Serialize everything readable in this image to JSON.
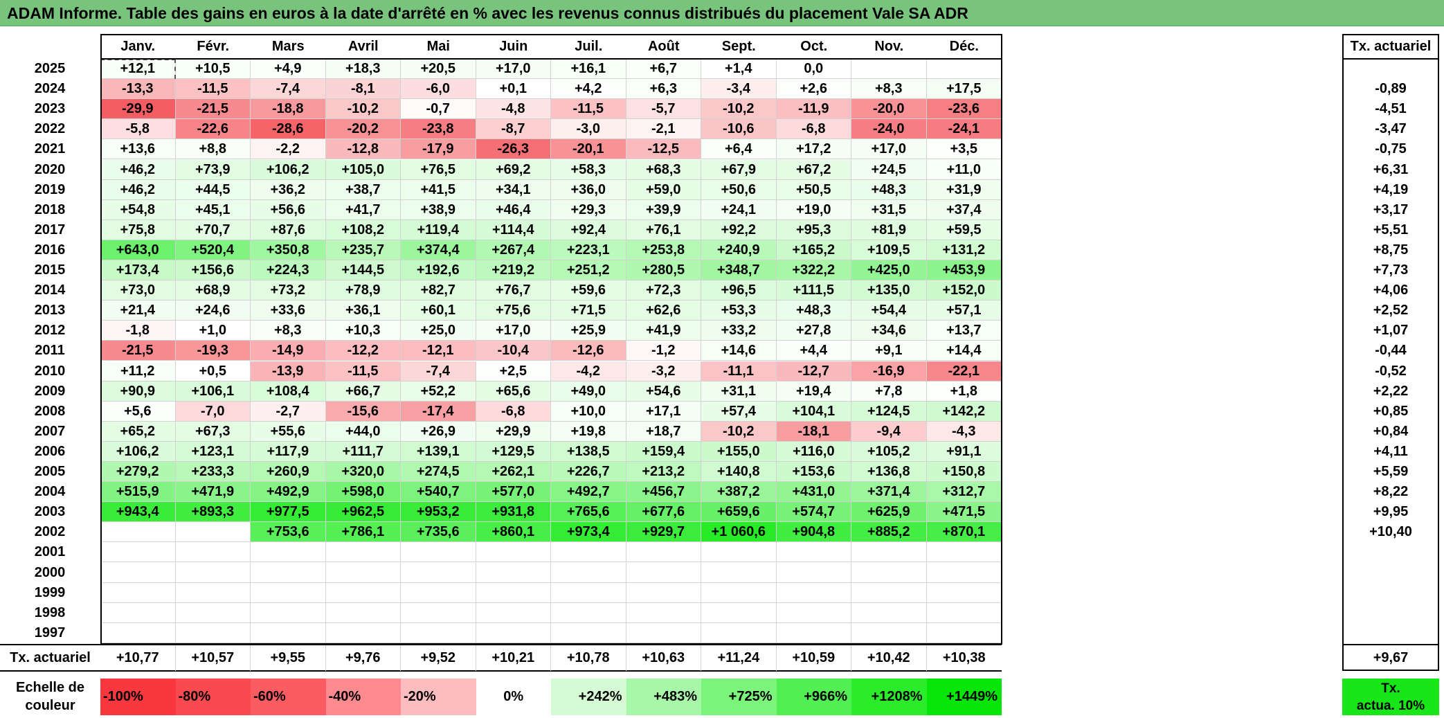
{
  "title": "ADAM Informe. Table des gains en euros à la date d'arrêté en % avec les revenus connus distribués du placement Vale SA ADR",
  "months": [
    "Janv.",
    "Févr.",
    "Mars",
    "Avril",
    "Mai",
    "Juin",
    "Juil.",
    "Août",
    "Sept.",
    "Oct.",
    "Nov.",
    "Déc."
  ],
  "annual_header": "Tx. actuariel",
  "rows": [
    {
      "year": "2025",
      "values": [
        "+12,1",
        "+10,5",
        "+4,9",
        "+18,3",
        "+20,5",
        "+17,0",
        "+16,1",
        "+6,7",
        "+1,4",
        "0,0",
        "",
        ""
      ],
      "annual": ""
    },
    {
      "year": "2024",
      "values": [
        "-13,3",
        "-11,5",
        "-7,4",
        "-8,1",
        "-6,0",
        "+0,1",
        "+4,2",
        "+6,3",
        "-3,4",
        "+2,6",
        "+8,3",
        "+17,5"
      ],
      "annual": "-0,89"
    },
    {
      "year": "2023",
      "values": [
        "-29,9",
        "-21,5",
        "-18,8",
        "-10,2",
        "-0,7",
        "-4,8",
        "-11,5",
        "-5,7",
        "-10,2",
        "-11,9",
        "-20,0",
        "-23,6"
      ],
      "annual": "-4,51"
    },
    {
      "year": "2022",
      "values": [
        "-5,8",
        "-22,6",
        "-28,6",
        "-20,2",
        "-23,8",
        "-8,7",
        "-3,0",
        "-2,1",
        "-10,6",
        "-6,8",
        "-24,0",
        "-24,1"
      ],
      "annual": "-3,47"
    },
    {
      "year": "2021",
      "values": [
        "+13,6",
        "+8,8",
        "-2,2",
        "-12,8",
        "-17,9",
        "-26,3",
        "-20,1",
        "-12,5",
        "+6,4",
        "+17,2",
        "+17,0",
        "+3,5"
      ],
      "annual": "-0,75"
    },
    {
      "year": "2020",
      "values": [
        "+46,2",
        "+73,9",
        "+106,2",
        "+105,0",
        "+76,5",
        "+69,2",
        "+58,3",
        "+68,3",
        "+67,9",
        "+67,2",
        "+24,5",
        "+11,0"
      ],
      "annual": "+6,31"
    },
    {
      "year": "2019",
      "values": [
        "+46,2",
        "+44,5",
        "+36,2",
        "+38,7",
        "+41,5",
        "+34,1",
        "+36,0",
        "+59,0",
        "+50,6",
        "+50,5",
        "+48,3",
        "+31,9"
      ],
      "annual": "+4,19"
    },
    {
      "year": "2018",
      "values": [
        "+54,8",
        "+45,1",
        "+56,6",
        "+41,7",
        "+38,9",
        "+46,4",
        "+29,3",
        "+39,9",
        "+24,1",
        "+19,0",
        "+31,5",
        "+37,4"
      ],
      "annual": "+3,17"
    },
    {
      "year": "2017",
      "values": [
        "+75,8",
        "+70,7",
        "+87,6",
        "+108,2",
        "+119,4",
        "+114,4",
        "+92,4",
        "+76,1",
        "+92,2",
        "+95,3",
        "+81,9",
        "+59,5"
      ],
      "annual": "+5,51"
    },
    {
      "year": "2016",
      "values": [
        "+643,0",
        "+520,4",
        "+350,8",
        "+235,7",
        "+374,4",
        "+267,4",
        "+223,1",
        "+253,8",
        "+240,9",
        "+165,2",
        "+109,5",
        "+131,2"
      ],
      "annual": "+8,75"
    },
    {
      "year": "2015",
      "values": [
        "+173,4",
        "+156,6",
        "+224,3",
        "+144,5",
        "+192,6",
        "+219,2",
        "+251,2",
        "+280,5",
        "+348,7",
        "+322,2",
        "+425,0",
        "+453,9"
      ],
      "annual": "+7,73"
    },
    {
      "year": "2014",
      "values": [
        "+73,0",
        "+68,9",
        "+73,2",
        "+78,9",
        "+82,7",
        "+76,7",
        "+59,6",
        "+72,3",
        "+96,5",
        "+111,5",
        "+135,0",
        "+152,0"
      ],
      "annual": "+4,06"
    },
    {
      "year": "2013",
      "values": [
        "+21,4",
        "+24,6",
        "+33,6",
        "+36,1",
        "+60,1",
        "+75,6",
        "+71,5",
        "+62,6",
        "+53,3",
        "+48,3",
        "+54,4",
        "+57,1"
      ],
      "annual": "+2,52"
    },
    {
      "year": "2012",
      "values": [
        "-1,8",
        "+1,0",
        "+8,3",
        "+10,3",
        "+25,0",
        "+17,0",
        "+25,9",
        "+41,9",
        "+33,2",
        "+27,8",
        "+34,6",
        "+13,7"
      ],
      "annual": "+1,07"
    },
    {
      "year": "2011",
      "values": [
        "-21,5",
        "-19,3",
        "-14,9",
        "-12,2",
        "-12,1",
        "-10,4",
        "-12,6",
        "-1,2",
        "+14,6",
        "+4,4",
        "+9,1",
        "+14,4"
      ],
      "annual": "-0,44"
    },
    {
      "year": "2010",
      "values": [
        "+11,2",
        "+0,5",
        "-13,9",
        "-11,5",
        "-7,4",
        "+2,5",
        "-4,2",
        "-3,2",
        "-11,1",
        "-12,7",
        "-16,9",
        "-22,1"
      ],
      "annual": "-0,52"
    },
    {
      "year": "2009",
      "values": [
        "+90,9",
        "+106,1",
        "+108,4",
        "+66,7",
        "+52,2",
        "+65,6",
        "+49,0",
        "+54,6",
        "+31,1",
        "+19,4",
        "+7,8",
        "+1,8"
      ],
      "annual": "+2,22"
    },
    {
      "year": "2008",
      "values": [
        "+5,6",
        "-7,0",
        "-2,7",
        "-15,6",
        "-17,4",
        "-6,8",
        "+10,0",
        "+17,1",
        "+57,4",
        "+104,1",
        "+124,5",
        "+142,2"
      ],
      "annual": "+0,85"
    },
    {
      "year": "2007",
      "values": [
        "+65,2",
        "+67,3",
        "+55,6",
        "+44,0",
        "+26,9",
        "+29,9",
        "+19,8",
        "+18,7",
        "-10,2",
        "-18,1",
        "-9,4",
        "-4,3"
      ],
      "annual": "+0,84"
    },
    {
      "year": "2006",
      "values": [
        "+106,2",
        "+123,1",
        "+117,9",
        "+111,7",
        "+139,1",
        "+129,5",
        "+138,5",
        "+159,4",
        "+155,0",
        "+116,0",
        "+105,2",
        "+91,1"
      ],
      "annual": "+4,11"
    },
    {
      "year": "2005",
      "values": [
        "+279,2",
        "+233,3",
        "+260,9",
        "+320,0",
        "+274,5",
        "+262,1",
        "+226,7",
        "+213,2",
        "+140,8",
        "+153,6",
        "+136,8",
        "+150,8"
      ],
      "annual": "+5,59"
    },
    {
      "year": "2004",
      "values": [
        "+515,9",
        "+471,9",
        "+492,9",
        "+598,0",
        "+540,7",
        "+577,0",
        "+492,7",
        "+456,7",
        "+387,2",
        "+431,0",
        "+371,4",
        "+312,7"
      ],
      "annual": "+8,22"
    },
    {
      "year": "2003",
      "values": [
        "+943,4",
        "+893,3",
        "+977,5",
        "+962,5",
        "+953,2",
        "+931,8",
        "+765,6",
        "+677,6",
        "+659,6",
        "+574,7",
        "+625,9",
        "+471,5"
      ],
      "annual": "+9,95"
    },
    {
      "year": "2002",
      "values": [
        "",
        "",
        "+753,6",
        "+786,1",
        "+735,6",
        "+860,1",
        "+973,4",
        "+929,7",
        "+1 060,6",
        "+904,8",
        "+885,2",
        "+870,1"
      ],
      "annual": "+10,40"
    },
    {
      "year": "2001",
      "values": [
        "",
        "",
        "",
        "",
        "",
        "",
        "",
        "",
        "",
        "",
        "",
        ""
      ],
      "annual": ""
    },
    {
      "year": "2000",
      "values": [
        "",
        "",
        "",
        "",
        "",
        "",
        "",
        "",
        "",
        "",
        "",
        ""
      ],
      "annual": ""
    },
    {
      "year": "1999",
      "values": [
        "",
        "",
        "",
        "",
        "",
        "",
        "",
        "",
        "",
        "",
        "",
        ""
      ],
      "annual": ""
    },
    {
      "year": "1998",
      "values": [
        "",
        "",
        "",
        "",
        "",
        "",
        "",
        "",
        "",
        "",
        "",
        ""
      ],
      "annual": ""
    },
    {
      "year": "1997",
      "values": [
        "",
        "",
        "",
        "",
        "",
        "",
        "",
        "",
        "",
        "",
        "",
        ""
      ],
      "annual": ""
    }
  ],
  "footer": {
    "label": "Tx. actuariel",
    "values": [
      "+10,77",
      "+10,57",
      "+9,55",
      "+9,76",
      "+9,52",
      "+10,21",
      "+10,78",
      "+10,63",
      "+11,24",
      "+10,59",
      "+10,42",
      "+10,38"
    ],
    "annual": "+9,67"
  },
  "scale": {
    "label_line1": "Echelle de",
    "label_line2": "couleur",
    "steps": [
      {
        "text": "-100%",
        "color": "#f8383e"
      },
      {
        "text": "-80%",
        "color": "#f94a50"
      },
      {
        "text": "-60%",
        "color": "#fa5c62"
      },
      {
        "text": "-40%",
        "color": "#fc8a8e"
      },
      {
        "text": "-20%",
        "color": "#fdbcbe"
      },
      {
        "text": "0%",
        "color": "#ffffff"
      },
      {
        "text": "+242%",
        "color": "#d4fbd4"
      },
      {
        "text": "+483%",
        "color": "#a8f7a8"
      },
      {
        "text": "+725%",
        "color": "#7cf47c"
      },
      {
        "text": "+966%",
        "color": "#52ef52"
      },
      {
        "text": "+1208%",
        "color": "#2bec2b"
      },
      {
        "text": "+1449%",
        "color": "#08e508"
      }
    ],
    "legend_line1": "Tx.",
    "legend_line2": "actua. 10%",
    "legend_color": "#19e619"
  }
}
